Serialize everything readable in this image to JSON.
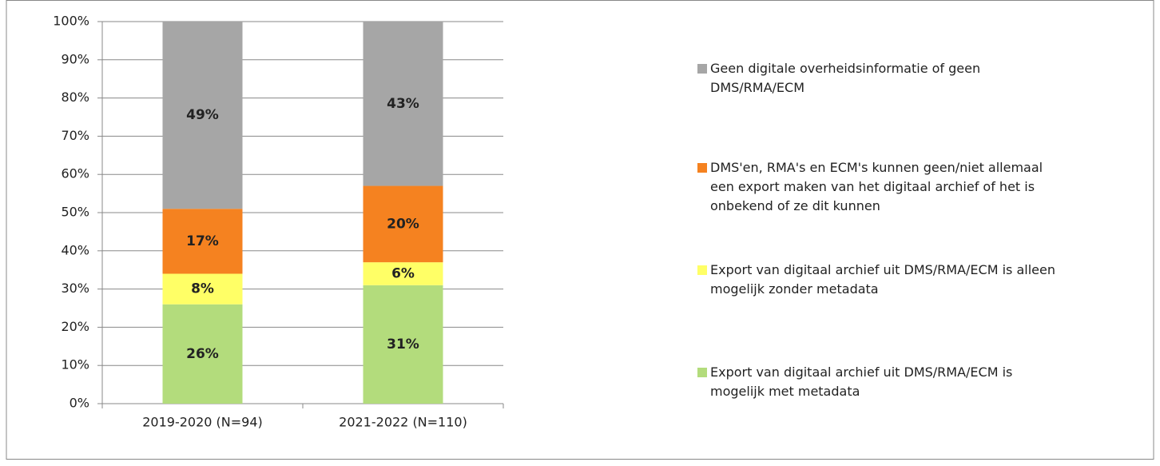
{
  "chart_data": {
    "type": "stacked_bar",
    "categories": [
      "2019-2020 (N=94)",
      "2021-2022 (N=110)"
    ],
    "series": [
      {
        "name": "Export van digitaal archief uit DMS/RMA/ECM is mogelijk met metadata",
        "color": "#b3dc7c",
        "values": [
          26,
          31
        ],
        "value_labels": [
          "26%",
          "31%"
        ]
      },
      {
        "name": "Export van digitaal archief uit DMS/RMA/ECM is alleen mogelijk zonder metadata",
        "color": "#ffff66",
        "values": [
          8,
          6
        ],
        "value_labels": [
          "8%",
          "6%"
        ]
      },
      {
        "name": "DMS'en, RMA's en ECM's kunnen geen/niet allemaal een export maken van het digitaal archief of het is onbekend of ze dit kunnen",
        "color": "#f58220",
        "values": [
          17,
          20
        ],
        "value_labels": [
          "17%",
          "20%"
        ]
      },
      {
        "name": "Geen digitale overheidsinformatie of geen DMS/RMA/ECM",
        "color": "#a6a6a6",
        "values": [
          49,
          43
        ],
        "value_labels": [
          "49%",
          "43%"
        ]
      }
    ],
    "ylim": [
      0,
      100
    ],
    "yticks": [
      {
        "value": 0,
        "label": "0%"
      },
      {
        "value": 10,
        "label": "10%"
      },
      {
        "value": 20,
        "label": "20%"
      },
      {
        "value": 30,
        "label": "30%"
      },
      {
        "value": 40,
        "label": "40%"
      },
      {
        "value": 50,
        "label": "50%"
      },
      {
        "value": 60,
        "label": "60%"
      },
      {
        "value": 70,
        "label": "70%"
      },
      {
        "value": 80,
        "label": "80%"
      },
      {
        "value": 90,
        "label": "90%"
      },
      {
        "value": 100,
        "label": "100%"
      }
    ],
    "grid": true,
    "legend": "right"
  }
}
